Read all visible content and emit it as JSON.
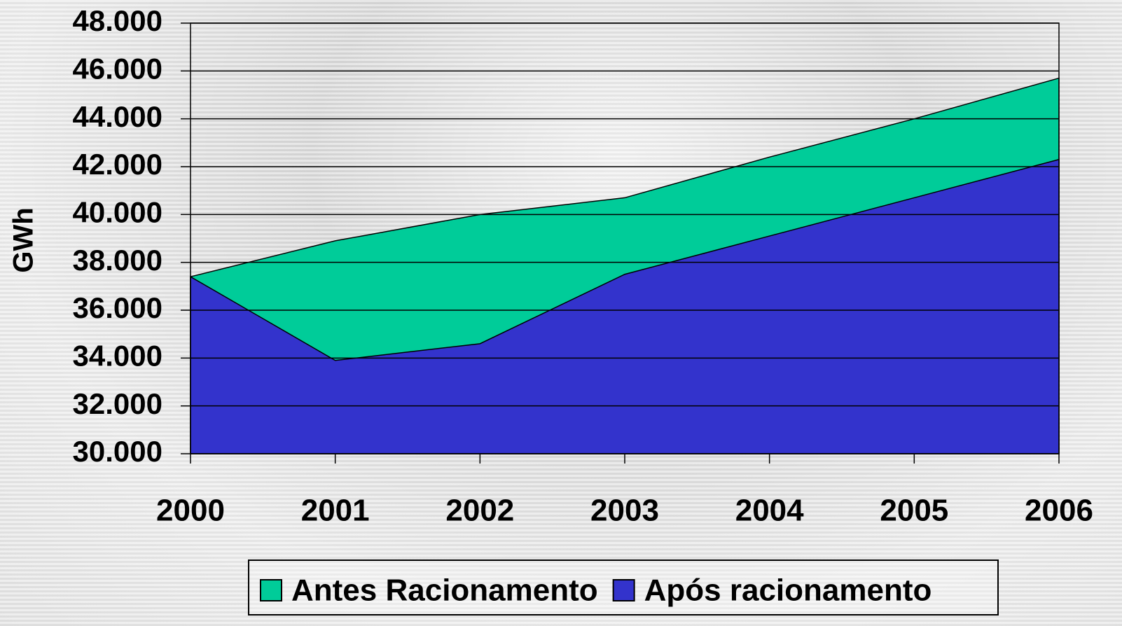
{
  "chart_data": {
    "type": "area",
    "y_label": "GWh",
    "categories": [
      "2000",
      "2001",
      "2002",
      "2003",
      "2004",
      "2005",
      "2006"
    ],
    "series": [
      {
        "name": "Antes Racionamento",
        "color": "#00cc99",
        "values": [
          37400,
          38900,
          40000,
          40700,
          42400,
          44000,
          45700
        ]
      },
      {
        "name": "Após racionamento",
        "color": "#3333cc",
        "values": [
          37400,
          33900,
          34600,
          37500,
          39100,
          40700,
          42300
        ]
      }
    ],
    "ylim": [
      30000,
      48000
    ],
    "yticks": [
      {
        "value": 30000,
        "label": "30.000"
      },
      {
        "value": 32000,
        "label": "32.000"
      },
      {
        "value": 34000,
        "label": "34.000"
      },
      {
        "value": 36000,
        "label": "36.000"
      },
      {
        "value": 38000,
        "label": "38.000"
      },
      {
        "value": 40000,
        "label": "40.000"
      },
      {
        "value": 42000,
        "label": "42.000"
      },
      {
        "value": 44000,
        "label": "44.000"
      },
      {
        "value": 46000,
        "label": "46.000"
      },
      {
        "value": 48000,
        "label": "48.000"
      }
    ],
    "grid": true,
    "legend": "bottom"
  }
}
